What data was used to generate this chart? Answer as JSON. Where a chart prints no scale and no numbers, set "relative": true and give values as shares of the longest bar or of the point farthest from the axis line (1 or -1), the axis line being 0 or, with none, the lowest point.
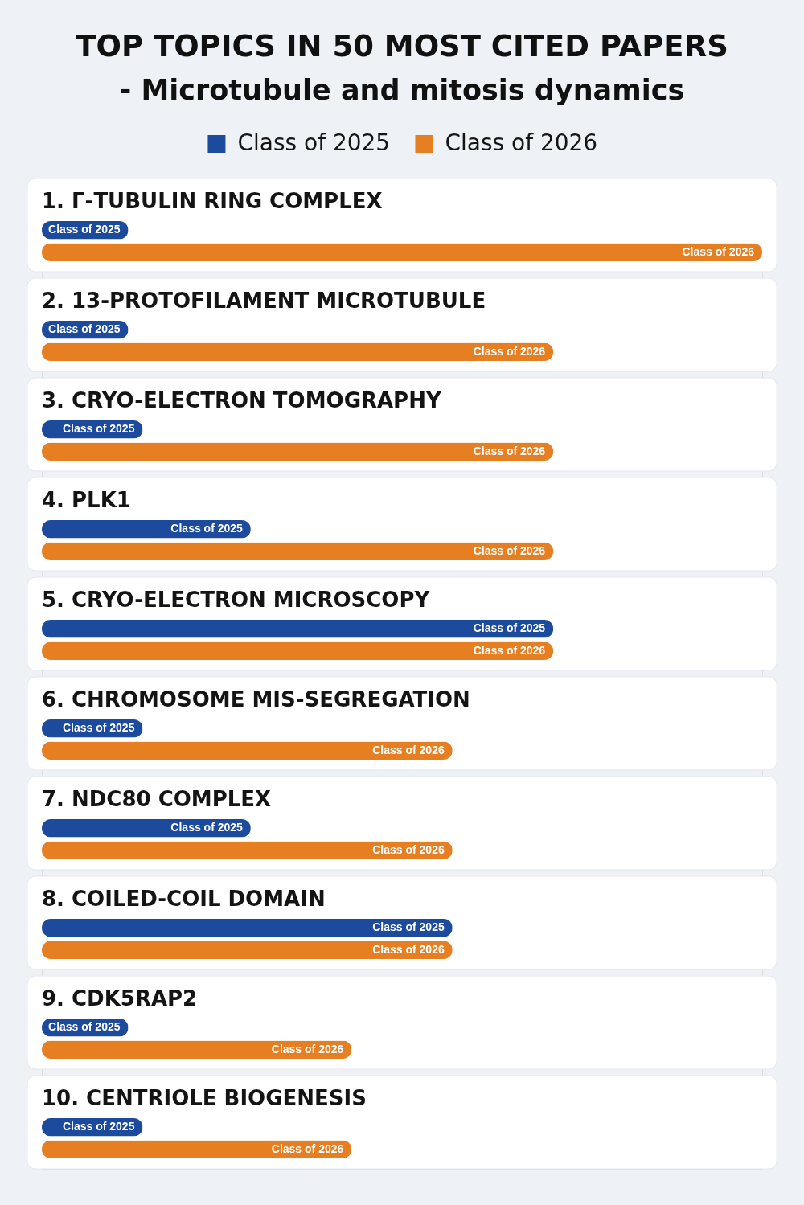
{
  "chart_data": {
    "type": "bar",
    "orientation": "horizontal",
    "relative": true,
    "title": "TOP TOPICS IN 50 MOST CITED PAPERS",
    "subtitle": "- Microtubule and mitosis dynamics",
    "legend": "top",
    "categories": [
      "1. Γ-TUBULIN RING COMPLEX",
      "2. 13-PROTOFILAMENT MICROTUBULE",
      "3. CRYO-ELECTRON TOMOGRAPHY",
      "4. PLK1",
      "5. CRYO-ELECTRON MICROSCOPY",
      "6. CHROMOSOME MIS-SEGREGATION",
      "7. NDC80 COMPLEX",
      "8. COILED-COIL DOMAIN",
      "9. CDK5RAP2",
      "10. CENTRIOLE BIOGENESIS"
    ],
    "series": [
      {
        "name": "Class of 2025",
        "color": "#1c4a9c",
        "values": [
          0.12,
          0.12,
          0.14,
          0.29,
          0.71,
          0.14,
          0.29,
          0.57,
          0.12,
          0.14
        ]
      },
      {
        "name": "Class of 2026",
        "color": "#e67e22",
        "values": [
          1.0,
          0.71,
          0.71,
          0.71,
          0.71,
          0.57,
          0.57,
          0.57,
          0.43,
          0.43
        ]
      }
    ]
  }
}
